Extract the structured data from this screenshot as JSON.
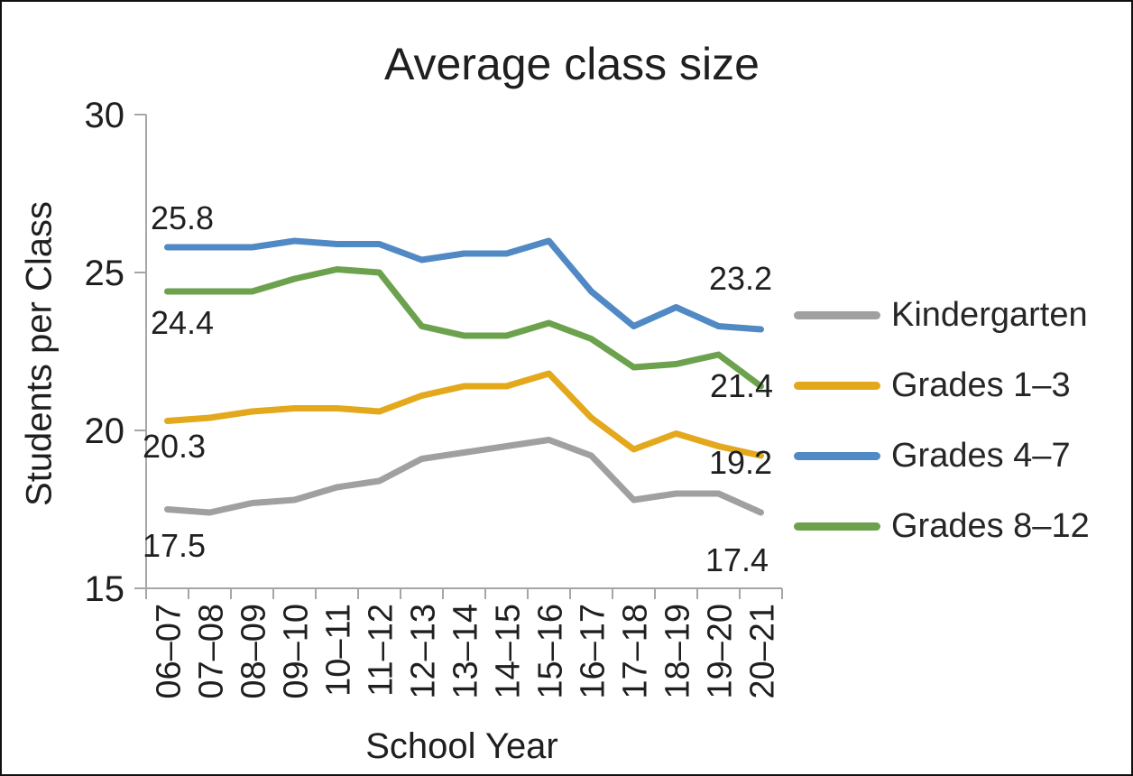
{
  "chart_data": {
    "type": "line",
    "title": "Average class size",
    "xlabel": "School Year",
    "ylabel": "Students per Class",
    "ylim": [
      15,
      30
    ],
    "yticks": [
      30,
      25,
      20,
      15
    ],
    "grid": false,
    "legend_position": "right",
    "axis_color": "#a6a6a6",
    "categories": [
      "06–07",
      "07–08",
      "08–09",
      "09–10",
      "10–11",
      "11–12",
      "12–13",
      "13–14",
      "14–15",
      "15–16",
      "16–17",
      "17–18",
      "18–19",
      "19–20",
      "20–21"
    ],
    "series": [
      {
        "name": "Kindergarten",
        "color": "#a0a0a0",
        "values": [
          17.5,
          17.4,
          17.7,
          17.8,
          18.2,
          18.4,
          19.1,
          19.3,
          19.5,
          19.7,
          19.2,
          17.8,
          18.0,
          18.0,
          17.4
        ]
      },
      {
        "name": "Grades 1–3",
        "color": "#e3a81c",
        "values": [
          20.3,
          20.4,
          20.6,
          20.7,
          20.7,
          20.6,
          21.1,
          21.4,
          21.4,
          21.8,
          20.4,
          19.4,
          19.9,
          19.5,
          19.2
        ]
      },
      {
        "name": "Grades 4–7",
        "color": "#5189c4",
        "values": [
          25.8,
          25.8,
          25.8,
          26.0,
          25.9,
          25.9,
          25.4,
          25.6,
          25.6,
          26.0,
          24.4,
          23.3,
          23.9,
          23.3,
          23.2
        ]
      },
      {
        "name": "Grades 8–12",
        "color": "#6ca24e",
        "values": [
          24.4,
          24.4,
          24.4,
          24.8,
          25.1,
          25.0,
          23.3,
          23.0,
          23.0,
          23.4,
          22.9,
          22.0,
          22.1,
          22.4,
          21.4
        ]
      }
    ],
    "annotations": [
      {
        "series": "Grades 4–7",
        "point": "first",
        "text": "25.8"
      },
      {
        "series": "Grades 8–12",
        "point": "first",
        "text": "24.4"
      },
      {
        "series": "Grades 1–3",
        "point": "first",
        "text": "20.3"
      },
      {
        "series": "Kindergarten",
        "point": "first",
        "text": "17.5"
      },
      {
        "series": "Grades 4–7",
        "point": "last",
        "text": "23.2"
      },
      {
        "series": "Grades 8–12",
        "point": "last",
        "text": "21.4"
      },
      {
        "series": "Grades 1–3",
        "point": "last",
        "text": "19.2"
      },
      {
        "series": "Kindergarten",
        "point": "last",
        "text": "17.4"
      }
    ]
  }
}
